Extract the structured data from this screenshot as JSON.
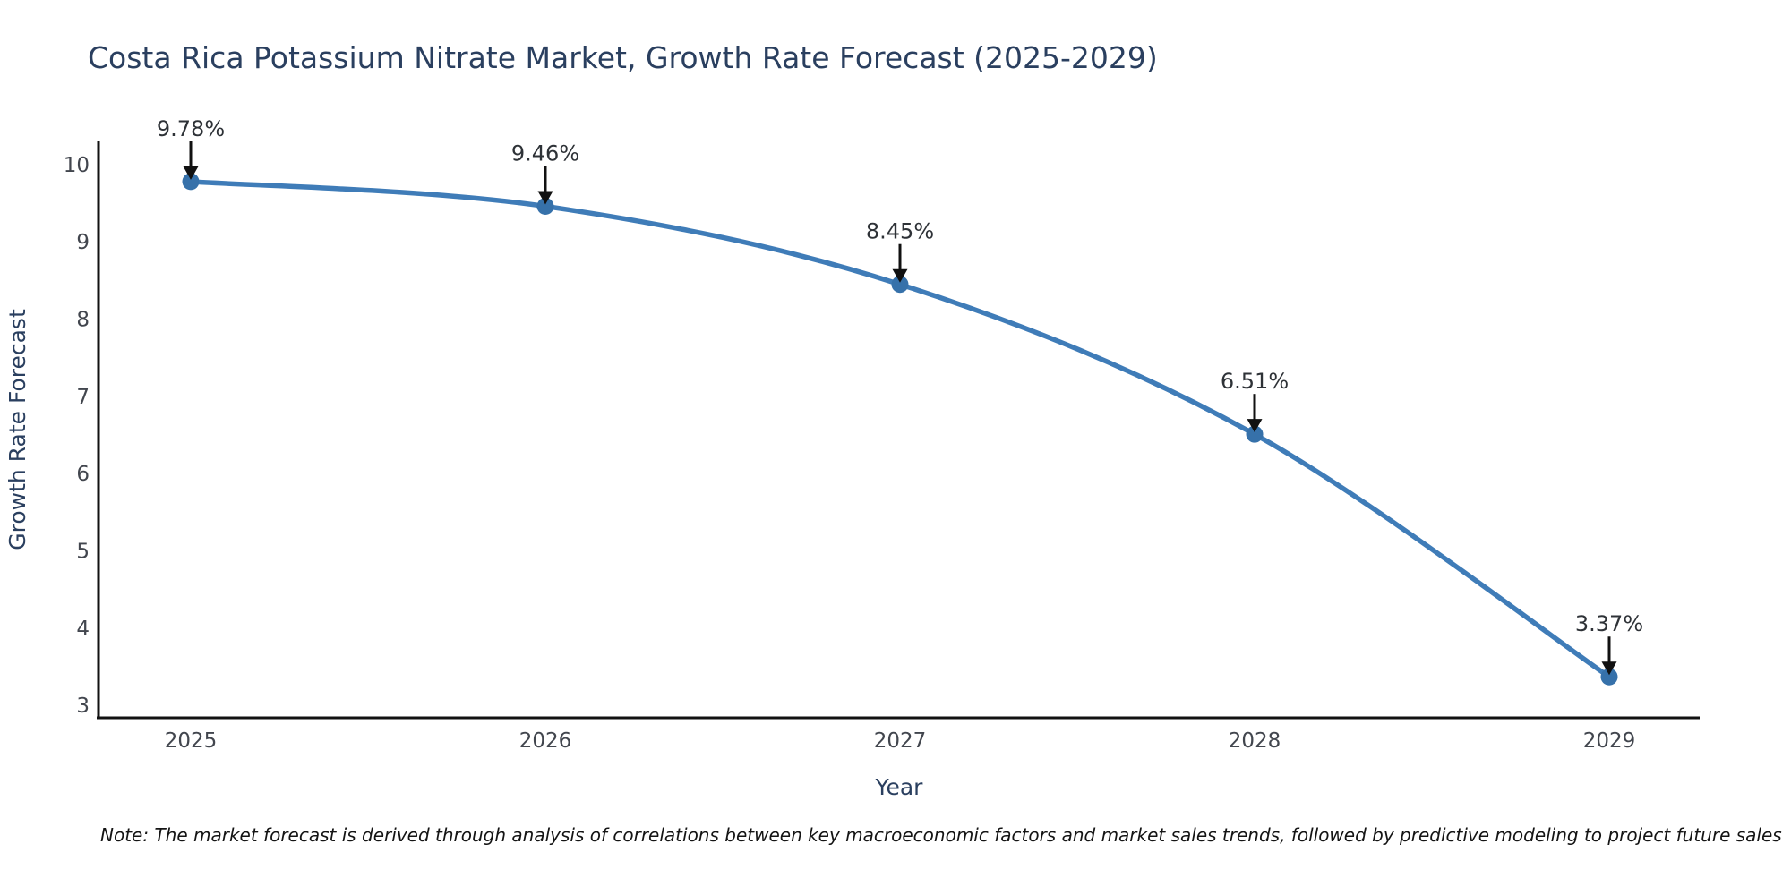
{
  "page": {
    "background": "#ffffff"
  },
  "chart_data": {
    "type": "line",
    "title": "Costa Rica Potassium Nitrate Market, Growth Rate Forecast (2025-2029)",
    "xlabel": "Year",
    "ylabel": "Growth Rate Forecast",
    "categories": [
      "2025",
      "2026",
      "2027",
      "2028",
      "2029"
    ],
    "series": [
      {
        "name": "Growth Rate Forecast",
        "values": [
          9.78,
          9.46,
          8.45,
          6.51,
          3.37
        ]
      }
    ],
    "point_labels": [
      "9.78%",
      "9.46%",
      "8.45%",
      "6.51%",
      "3.37%"
    ],
    "yticks": [
      3,
      4,
      5,
      6,
      7,
      8,
      9,
      10
    ],
    "ylim": [
      2.84,
      10.3
    ],
    "grid": false,
    "legend": "none",
    "line_shape": "spline",
    "marker_style": "circle",
    "annotation_style": "value-above-point-with-down-arrow",
    "colors": {
      "line": "#3f7cb8",
      "marker": "#3671aa",
      "axis_line": "#111111",
      "title": "#2a3f5f",
      "axis_title": "#2a3f5f",
      "tick": "#42464e",
      "annotation_text": "#2e3237",
      "annotation_arrow": "#111111",
      "note": "#141414",
      "background": "#ffffff"
    }
  },
  "note": "Note: The market forecast is derived through analysis of correlations between key macroeconomic factors and market sales trends, followed by predictive modeling to project future sales"
}
